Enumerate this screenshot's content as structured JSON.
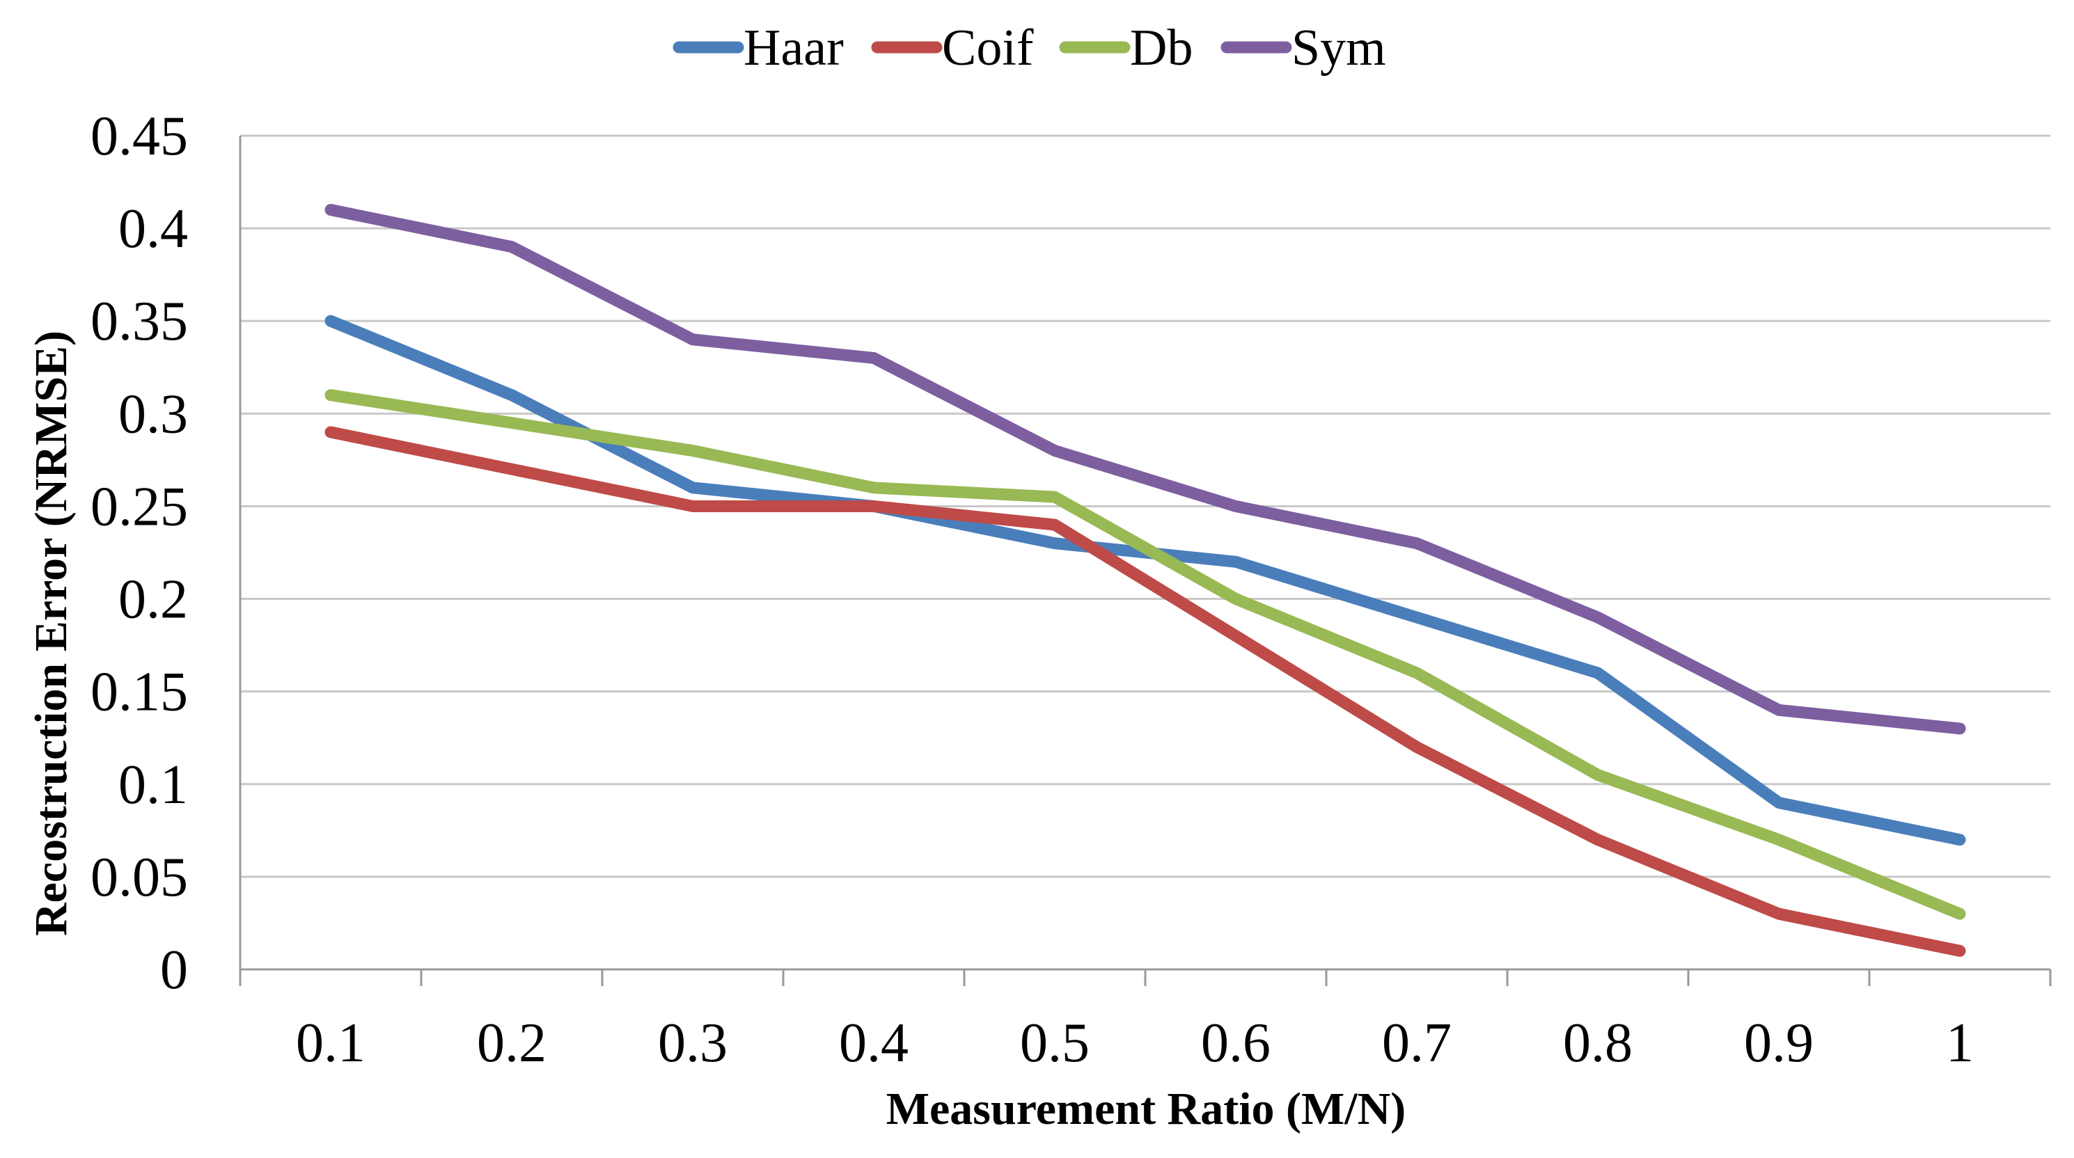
{
  "chart_data": {
    "type": "line",
    "title": "",
    "xlabel": "Measurement Ratio (M/N)",
    "ylabel": "Recostruction Error (NRMSE)",
    "categories": [
      "0.1",
      "0.2",
      "0.3",
      "0.4",
      "0.5",
      "0.6",
      "0.7",
      "0.8",
      "0.9",
      "1"
    ],
    "ylim": [
      0,
      0.45
    ],
    "yticks": [
      "0",
      "0.05",
      "0.1",
      "0.15",
      "0.2",
      "0.25",
      "0.3",
      "0.35",
      "0.4",
      "0.45"
    ],
    "grid": true,
    "legend_position": "top",
    "series": [
      {
        "name": "Haar",
        "color": "#4a7ebb",
        "values": [
          0.35,
          0.31,
          0.26,
          0.25,
          0.23,
          0.22,
          0.19,
          0.16,
          0.09,
          0.07
        ]
      },
      {
        "name": "Coif",
        "color": "#be4b48",
        "values": [
          0.29,
          0.27,
          0.25,
          0.25,
          0.24,
          0.18,
          0.12,
          0.07,
          0.03,
          0.01
        ]
      },
      {
        "name": "Db",
        "color": "#98b954",
        "values": [
          0.31,
          0.295,
          0.28,
          0.26,
          0.255,
          0.2,
          0.16,
          0.105,
          0.07,
          0.03
        ]
      },
      {
        "name": "Sym",
        "color": "#7d5fa0",
        "values": [
          0.41,
          0.39,
          0.34,
          0.33,
          0.28,
          0.25,
          0.23,
          0.19,
          0.14,
          0.13
        ]
      }
    ]
  }
}
